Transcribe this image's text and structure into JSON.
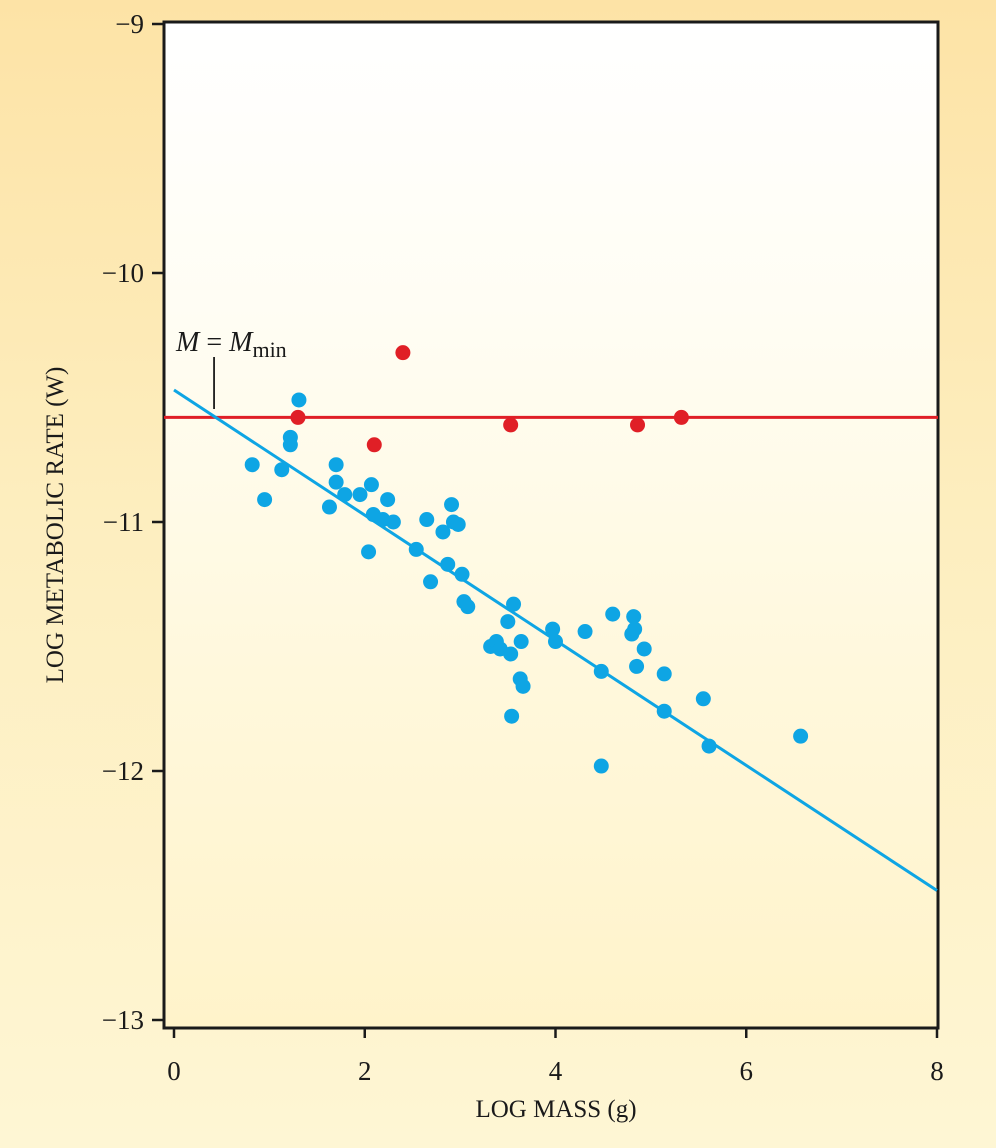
{
  "chart_data": {
    "type": "scatter",
    "title": "",
    "xlabel": "LOG MASS (g)",
    "ylabel": "LOG METABOLIC RATE (W)",
    "xlim": [
      0,
      8
    ],
    "ylim": [
      -13,
      -9
    ],
    "x_ticks": [
      0,
      2,
      4,
      6,
      8
    ],
    "x_tick_labels": [
      "0",
      "2",
      "4",
      "6",
      "8"
    ],
    "y_ticks": [
      -13,
      -12,
      -11,
      -10,
      -9
    ],
    "y_tick_labels": [
      "−13",
      "−12",
      "−11",
      "−10",
      "−9"
    ],
    "colors": {
      "blue": "#0ea5e4",
      "red": "#e01f26",
      "axis": "#1a1a1a"
    },
    "annotation": {
      "italic": "M",
      "equals": " = ",
      "italic2": "M",
      "subscript": "min",
      "x": 0.42
    },
    "reference_line": {
      "name": "horizontal fit",
      "y": -10.58,
      "color": "red"
    },
    "fit_line": {
      "name": "regression",
      "x": [
        0,
        8
      ],
      "y": [
        -10.47,
        -12.48
      ],
      "color": "blue"
    },
    "series": [
      {
        "name": "blue points",
        "color": "blue",
        "points": [
          [
            0.82,
            -10.77
          ],
          [
            0.95,
            -10.91
          ],
          [
            1.13,
            -10.79
          ],
          [
            1.22,
            -10.66
          ],
          [
            1.22,
            -10.69
          ],
          [
            1.31,
            -10.51
          ],
          [
            1.63,
            -10.94
          ],
          [
            1.7,
            -10.77
          ],
          [
            1.7,
            -10.84
          ],
          [
            1.79,
            -10.89
          ],
          [
            1.95,
            -10.89
          ],
          [
            2.04,
            -11.12
          ],
          [
            2.07,
            -10.85
          ],
          [
            2.09,
            -10.97
          ],
          [
            2.19,
            -10.99
          ],
          [
            2.24,
            -10.91
          ],
          [
            2.3,
            -11.0
          ],
          [
            2.54,
            -11.11
          ],
          [
            2.65,
            -10.99
          ],
          [
            2.69,
            -11.24
          ],
          [
            2.82,
            -11.04
          ],
          [
            2.87,
            -11.17
          ],
          [
            2.91,
            -10.93
          ],
          [
            2.93,
            -11.0
          ],
          [
            2.98,
            -11.01
          ],
          [
            3.02,
            -11.21
          ],
          [
            3.04,
            -11.32
          ],
          [
            3.08,
            -11.34
          ],
          [
            3.32,
            -11.5
          ],
          [
            3.38,
            -11.48
          ],
          [
            3.42,
            -11.51
          ],
          [
            3.5,
            -11.4
          ],
          [
            3.53,
            -11.53
          ],
          [
            3.54,
            -11.78
          ],
          [
            3.56,
            -11.33
          ],
          [
            3.63,
            -11.63
          ],
          [
            3.64,
            -11.48
          ],
          [
            3.66,
            -11.66
          ],
          [
            3.97,
            -11.43
          ],
          [
            4.0,
            -11.48
          ],
          [
            4.31,
            -11.44
          ],
          [
            4.48,
            -11.98
          ],
          [
            4.48,
            -11.6
          ],
          [
            4.6,
            -11.37
          ],
          [
            4.8,
            -11.45
          ],
          [
            4.82,
            -11.38
          ],
          [
            4.83,
            -11.43
          ],
          [
            4.85,
            -11.58
          ],
          [
            4.93,
            -11.51
          ],
          [
            5.14,
            -11.76
          ],
          [
            5.14,
            -11.61
          ],
          [
            5.55,
            -11.71
          ],
          [
            5.61,
            -11.9
          ],
          [
            6.57,
            -11.86
          ]
        ]
      },
      {
        "name": "red points",
        "color": "red",
        "points": [
          [
            1.3,
            -10.58
          ],
          [
            2.1,
            -10.69
          ],
          [
            2.4,
            -10.32
          ],
          [
            3.53,
            -10.61
          ],
          [
            4.86,
            -10.61
          ],
          [
            5.32,
            -10.58
          ]
        ]
      }
    ]
  }
}
